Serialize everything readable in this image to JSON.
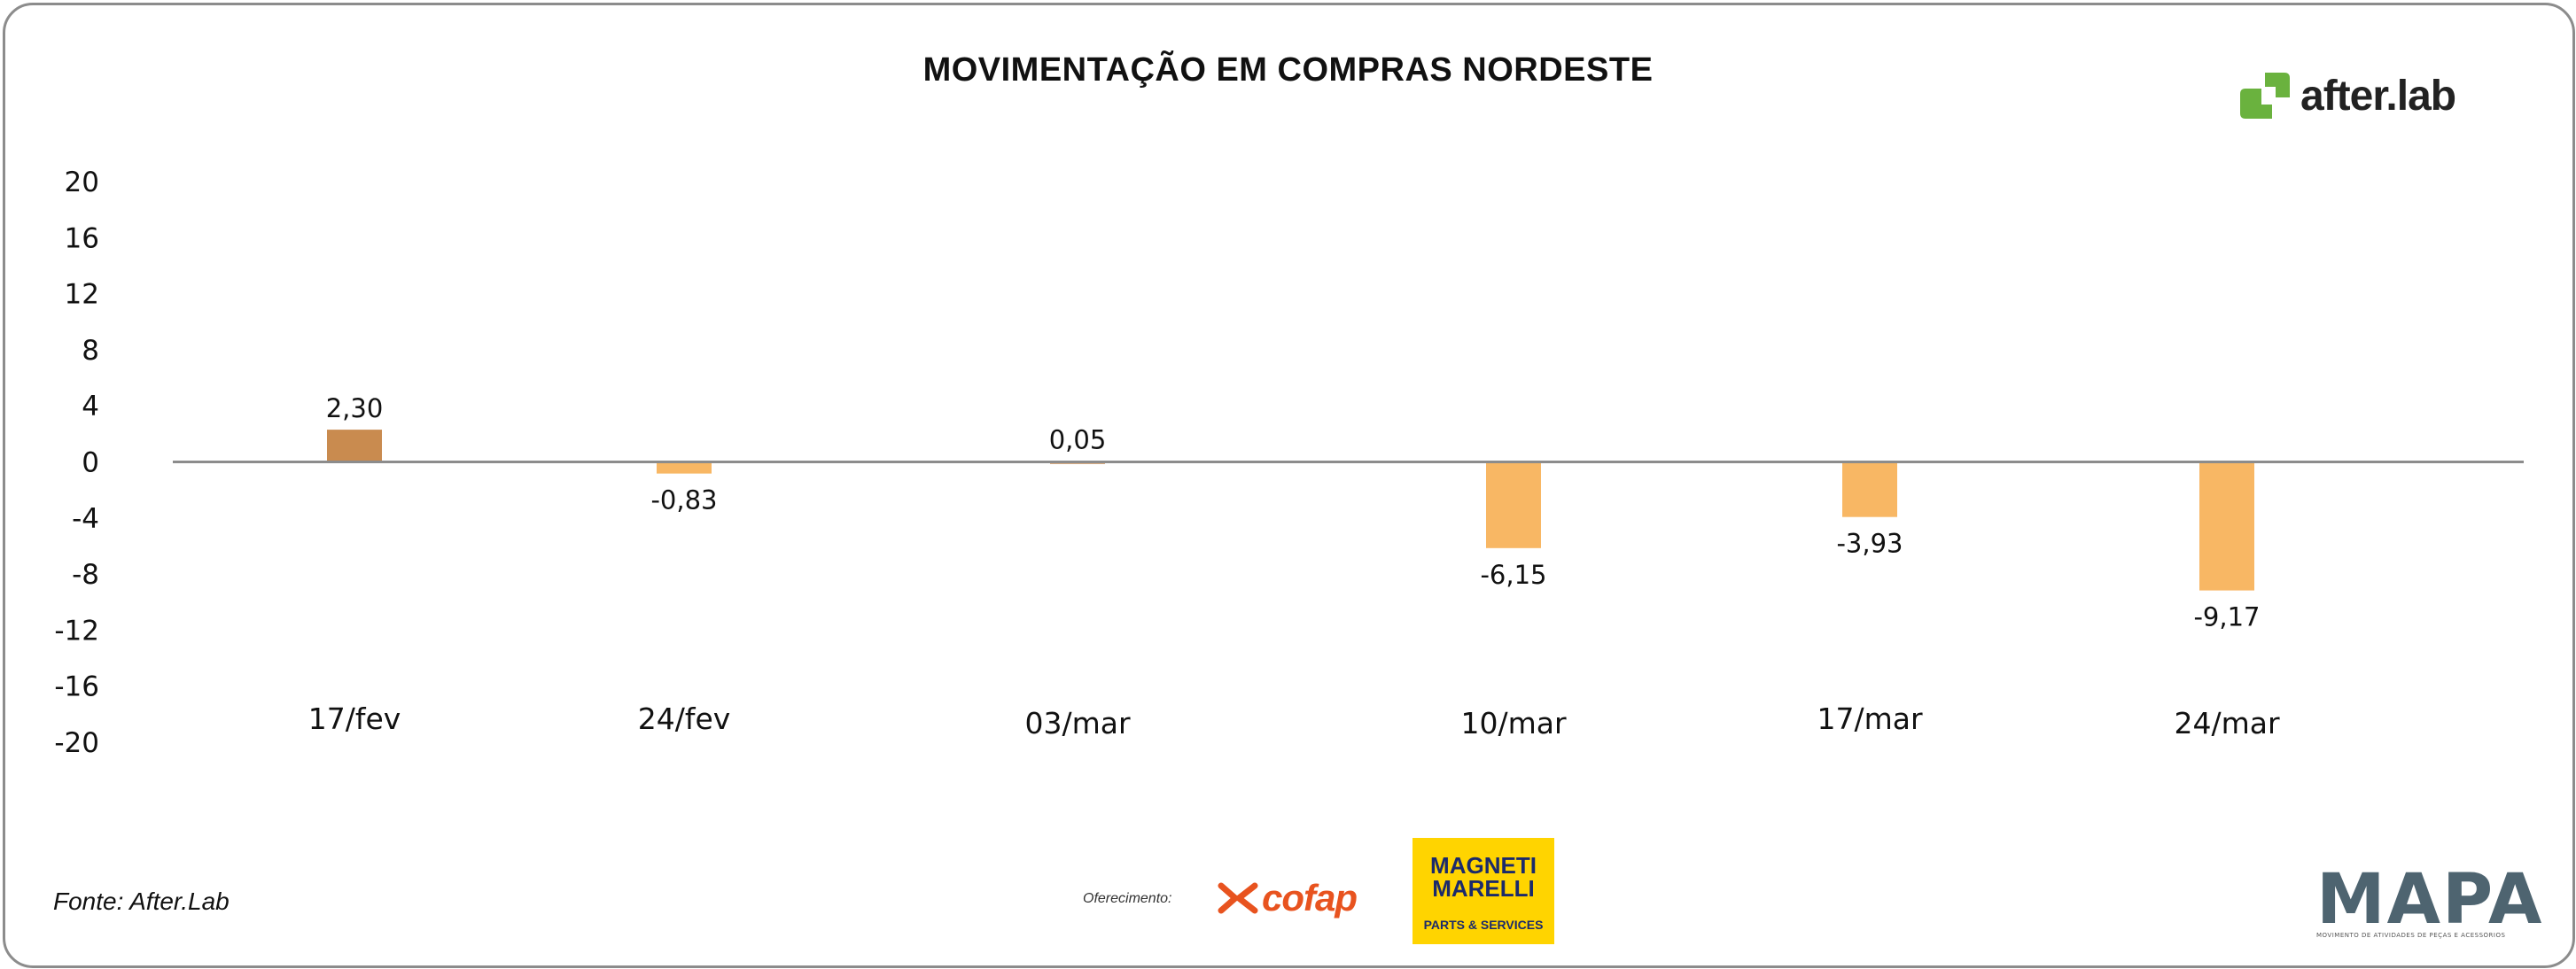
{
  "title": "MOVIMENTAÇÃO EM COMPRAS NORDESTE",
  "brand": {
    "name": "after.lab",
    "color": "#6ab23e"
  },
  "source": "Fonte: After.Lab",
  "sponsor": {
    "label": "Oferecimento:",
    "cofap": "cofap",
    "magneti_marelli_top": "MAGNETI MARELLI",
    "magneti_marelli_bottom": "PARTS & SERVICES"
  },
  "mapa": {
    "name": "MAPA",
    "subtitle": "MOVIMENTO DE ATIVIDADES DE PEÇAS E ACESSÓRIOS"
  },
  "chart_data": {
    "type": "bar",
    "title": "MOVIMENTAÇÃO EM COMPRAS NORDESTE",
    "categories": [
      "17/fev",
      "24/fev",
      "03/mar",
      "10/mar",
      "17/mar",
      "24/mar"
    ],
    "values": [
      2.3,
      -0.83,
      0.05,
      -6.15,
      -3.93,
      -9.17
    ],
    "value_labels": [
      "2,30",
      "-0,83",
      "0,05",
      "-6,15",
      "-3,93",
      "-9,17"
    ],
    "ylim": [
      -20,
      20
    ],
    "yticks": [
      20,
      16,
      12,
      8,
      4,
      0,
      -4,
      -8,
      -12,
      -16,
      -20
    ],
    "ytick_labels": [
      "20",
      "16",
      "12",
      "8",
      "4",
      "0",
      "-4",
      "-8",
      "-12",
      "-16",
      "-20"
    ],
    "colors": [
      "#c98b4f",
      "#f8b764",
      "#c98b4f",
      "#f8b764",
      "#f8b764",
      "#f8b764"
    ],
    "axis_color": "#8c8c8c",
    "grid": false,
    "legend": "none"
  }
}
